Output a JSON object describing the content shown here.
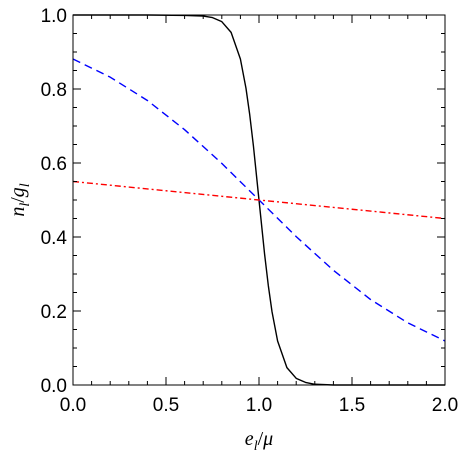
{
  "chart_data": {
    "type": "line",
    "title": "",
    "xlabel": "e_l/μ",
    "ylabel": "n_l/g_l",
    "xlabel_parts": {
      "num": "e",
      "num_sub": "l",
      "slash": "/",
      "den": "μ",
      "den_sub": ""
    },
    "ylabel_parts": {
      "num": "n",
      "num_sub": "l",
      "slash": "/",
      "den": "g",
      "den_sub": "l"
    },
    "xlim": [
      0,
      2
    ],
    "ylim": [
      0,
      1
    ],
    "xticks": [
      0,
      0.5,
      1.0,
      1.5,
      2.0
    ],
    "xtick_labels": [
      "0.0",
      "0.5",
      "1.0",
      "1.5",
      "2.0"
    ],
    "yticks": [
      0,
      0.2,
      0.4,
      0.6,
      0.8,
      1.0
    ],
    "ytick_labels": [
      "0.0",
      "0.2",
      "0.4",
      "0.6",
      "0.8",
      "1.0"
    ],
    "grid": false,
    "legend": "none",
    "series": [
      {
        "color": "#000000",
        "style": "solid",
        "x": [
          0,
          0.2,
          0.4,
          0.6,
          0.7,
          0.75,
          0.8,
          0.85,
          0.9,
          0.93,
          0.95,
          0.97,
          1.0,
          1.03,
          1.05,
          1.07,
          1.1,
          1.15,
          1.2,
          1.25,
          1.3,
          1.4,
          1.6,
          2.0
        ],
        "y": [
          1.0,
          1.0,
          1.0,
          0.999,
          0.997,
          0.993,
          0.982,
          0.953,
          0.881,
          0.802,
          0.731,
          0.646,
          0.5,
          0.354,
          0.269,
          0.198,
          0.119,
          0.047,
          0.018,
          0.007,
          0.002,
          0.0,
          0.0,
          0.0
        ]
      },
      {
        "color": "#0000ff",
        "style": "dashed",
        "x": [
          0,
          0.2,
          0.4,
          0.6,
          0.8,
          1.0,
          1.2,
          1.4,
          1.6,
          1.8,
          2.0
        ],
        "y": [
          0.881,
          0.832,
          0.769,
          0.69,
          0.599,
          0.5,
          0.401,
          0.31,
          0.231,
          0.168,
          0.119
        ]
      },
      {
        "color": "#ff0000",
        "style": "dashdot",
        "x": [
          0,
          0.5,
          1.0,
          1.5,
          2.0
        ],
        "y": [
          0.55,
          0.525,
          0.5,
          0.475,
          0.45
        ]
      }
    ]
  }
}
